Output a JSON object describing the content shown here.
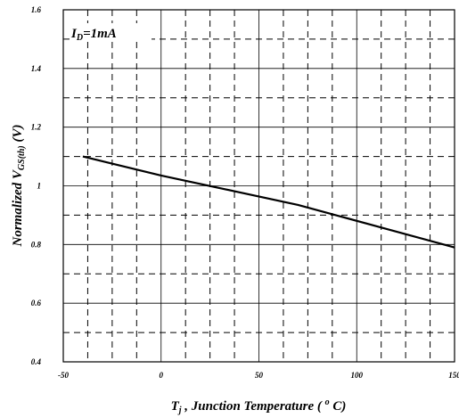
{
  "chart_data": {
    "type": "line",
    "xlabel_parts": {
      "var": "T",
      "sub": "j",
      "rest": " , Junction Temperature ( ",
      "deg": "o",
      "unit": " C)"
    },
    "ylabel_parts": {
      "pre": "Normalized  V",
      "sub": "GS(th)",
      "post": " (V)"
    },
    "annotation_parts": {
      "var": "I",
      "sub": "D",
      "rest": "=1mA"
    },
    "xlim": [
      -50,
      150
    ],
    "ylim": [
      0.4,
      1.6
    ],
    "xticks": [
      -50,
      0,
      50,
      100,
      150
    ],
    "xtick_labels": [
      "-50",
      "0",
      "50",
      "100",
      "150"
    ],
    "yticks": [
      0.4,
      0.6,
      0.8,
      1.0,
      1.2,
      1.4,
      1.6
    ],
    "ytick_labels": [
      "0.4",
      "0.6",
      "0.8",
      "1",
      "1.2",
      "1.4",
      "1.6"
    ],
    "grid": {
      "major": "solid",
      "minor": "dashed",
      "x_minor_step": 12.5,
      "y_minor_step": 0.1
    },
    "series": [
      {
        "x": [
          -40,
          0,
          70,
          150
        ],
        "y": [
          1.1,
          1.035,
          0.935,
          0.79
        ]
      }
    ],
    "colors": {
      "line": "#000000",
      "grid": "#000000",
      "background": "#ffffff"
    }
  }
}
